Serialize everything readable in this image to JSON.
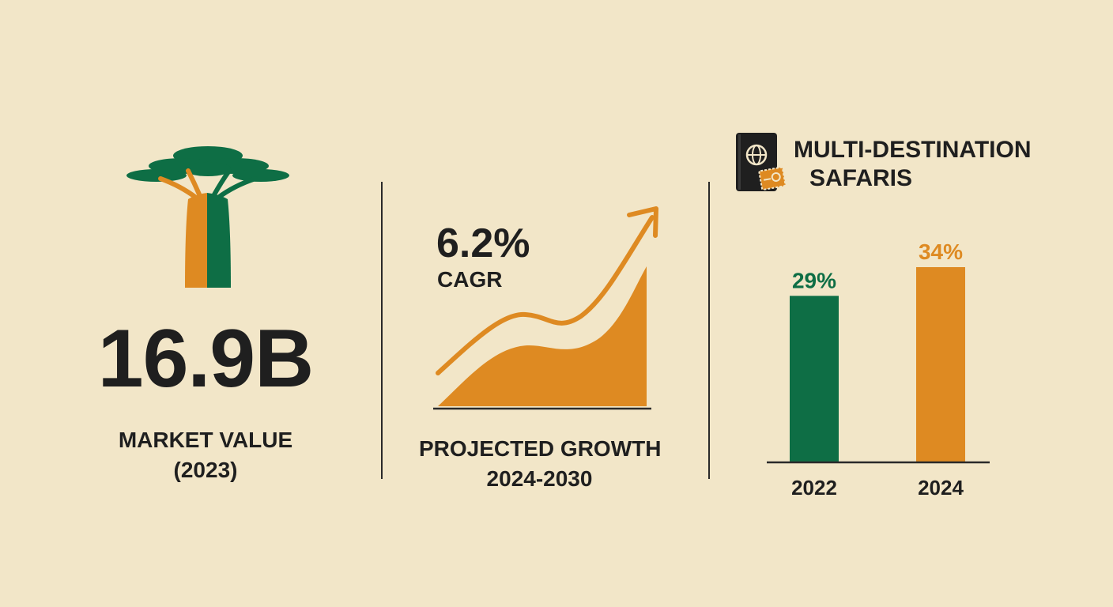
{
  "colors": {
    "background": "#f2e6c8",
    "green": "#0e6e45",
    "orange": "#de8a22",
    "dark": "#1f1f1f"
  },
  "market": {
    "value": "16.9B",
    "label_line1": "MARKET VALUE",
    "label_line2": "(2023)",
    "icon": "baobab-tree-icon"
  },
  "growth": {
    "value": "6.2%",
    "label": "CAGR",
    "caption_line1": "PROJECTED GROWTH",
    "caption_line2": "2024-2030",
    "icon": "trend-arrow-icon"
  },
  "multi_destination": {
    "title_line1": "MULTI-DESTINATION",
    "title_line2": "SAFARIS",
    "icon": "passport-icon"
  },
  "chart_data": {
    "type": "bar",
    "categories": [
      "2022",
      "2024"
    ],
    "values": [
      29,
      34
    ],
    "value_labels": [
      "29%",
      "34%"
    ],
    "bar_colors": [
      "#0e6e45",
      "#de8a22"
    ],
    "title": "MULTI-DESTINATION SAFARIS",
    "xlabel": "",
    "ylabel": "",
    "grid": false,
    "legend": "none"
  }
}
